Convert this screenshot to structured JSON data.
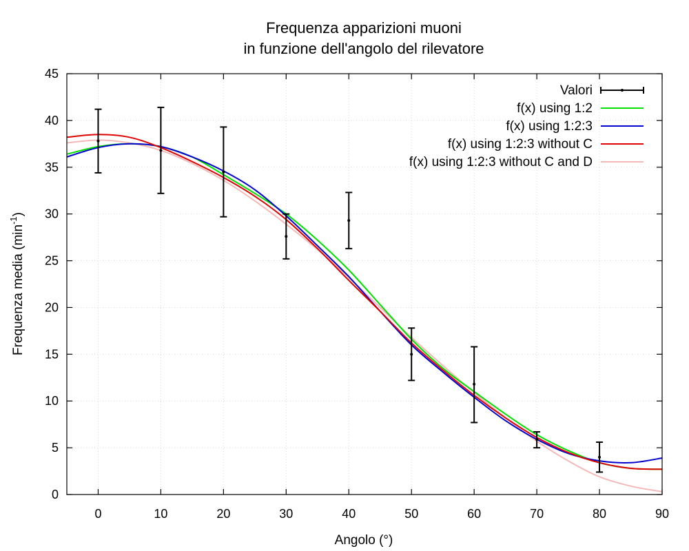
{
  "chart_data": {
    "type": "scatter",
    "title_line1": "Frequenza apparizioni muoni",
    "title_line2": "in funzione dell'angolo del rilevatore",
    "xlabel": "Angolo (°)",
    "ylabel_main": "Frequenza media (min",
    "ylabel_sup": "-1",
    "ylabel_close": ")",
    "xlim": [
      -5,
      90
    ],
    "ylim": [
      0,
      45
    ],
    "xticks": [
      0,
      10,
      20,
      30,
      40,
      50,
      60,
      70,
      80,
      90
    ],
    "yticks": [
      0,
      5,
      10,
      15,
      20,
      25,
      30,
      35,
      40,
      45
    ],
    "grid": true,
    "legend_position": "top-right",
    "points": {
      "name": "Valori",
      "color": "#000000",
      "data": [
        {
          "x": 0,
          "y": 37.8,
          "ylow": 34.4,
          "yhigh": 41.2
        },
        {
          "x": 10,
          "y": 36.8,
          "ylow": 32.2,
          "yhigh": 41.4
        },
        {
          "x": 20,
          "y": 34.5,
          "ylow": 29.7,
          "yhigh": 39.3
        },
        {
          "x": 30,
          "y": 27.6,
          "ylow": 25.2,
          "yhigh": 30.0
        },
        {
          "x": 40,
          "y": 29.3,
          "ylow": 26.3,
          "yhigh": 32.3
        },
        {
          "x": 50,
          "y": 15.0,
          "ylow": 12.2,
          "yhigh": 17.8
        },
        {
          "x": 60,
          "y": 11.8,
          "ylow": 7.7,
          "yhigh": 15.8
        },
        {
          "x": 70,
          "y": 5.9,
          "ylow": 5.0,
          "yhigh": 6.7
        },
        {
          "x": 80,
          "y": 4.0,
          "ylow": 2.4,
          "yhigh": 5.6
        }
      ]
    },
    "series": [
      {
        "name": "f(x) using 1:2",
        "color": "#00e000",
        "x": [
          -5,
          0,
          5,
          10,
          15,
          20,
          25,
          30,
          35,
          40,
          45,
          50,
          55,
          60,
          65,
          70,
          75,
          80,
          85,
          90
        ],
        "y": [
          36.4,
          37.2,
          37.5,
          37.2,
          36.1,
          34.2,
          32.2,
          30.0,
          27.2,
          24.0,
          20.3,
          16.6,
          13.5,
          11.0,
          8.6,
          6.4,
          4.7,
          3.4,
          2.8,
          2.7
        ]
      },
      {
        "name": "f(x) using 1:2:3",
        "color": "#0000d0",
        "x": [
          -5,
          0,
          5,
          10,
          15,
          20,
          25,
          30,
          35,
          40,
          45,
          50,
          55,
          60,
          65,
          70,
          75,
          80,
          85,
          90
        ],
        "y": [
          36.1,
          37.1,
          37.5,
          37.2,
          36.1,
          34.6,
          32.6,
          29.8,
          26.6,
          23.3,
          19.6,
          16.0,
          13.1,
          10.4,
          7.9,
          5.9,
          4.4,
          3.6,
          3.4,
          3.9
        ]
      },
      {
        "name": "f(x) using 1:2:3 without C",
        "color": "#e00000",
        "x": [
          -5,
          0,
          5,
          10,
          15,
          20,
          25,
          30,
          35,
          40,
          45,
          50,
          55,
          60,
          65,
          70,
          75,
          80,
          85,
          90
        ],
        "y": [
          38.2,
          38.5,
          38.2,
          37.1,
          35.6,
          33.9,
          31.9,
          29.4,
          26.3,
          22.9,
          19.6,
          16.2,
          13.3,
          10.6,
          8.2,
          6.1,
          4.5,
          3.4,
          2.8,
          2.7
        ]
      },
      {
        "name": "f(x) using 1:2:3 without C and D",
        "color": "#f5b8b8",
        "x": [
          -5,
          0,
          5,
          10,
          15,
          20,
          25,
          30,
          35,
          40,
          45,
          50,
          55,
          60,
          65,
          70,
          75,
          80,
          85,
          90
        ],
        "y": [
          37.6,
          37.9,
          37.6,
          36.8,
          35.4,
          33.6,
          31.4,
          28.9,
          26.2,
          23.2,
          20.0,
          16.8,
          13.8,
          10.9,
          8.2,
          5.7,
          3.6,
          1.9,
          0.9,
          0.3
        ]
      }
    ]
  }
}
